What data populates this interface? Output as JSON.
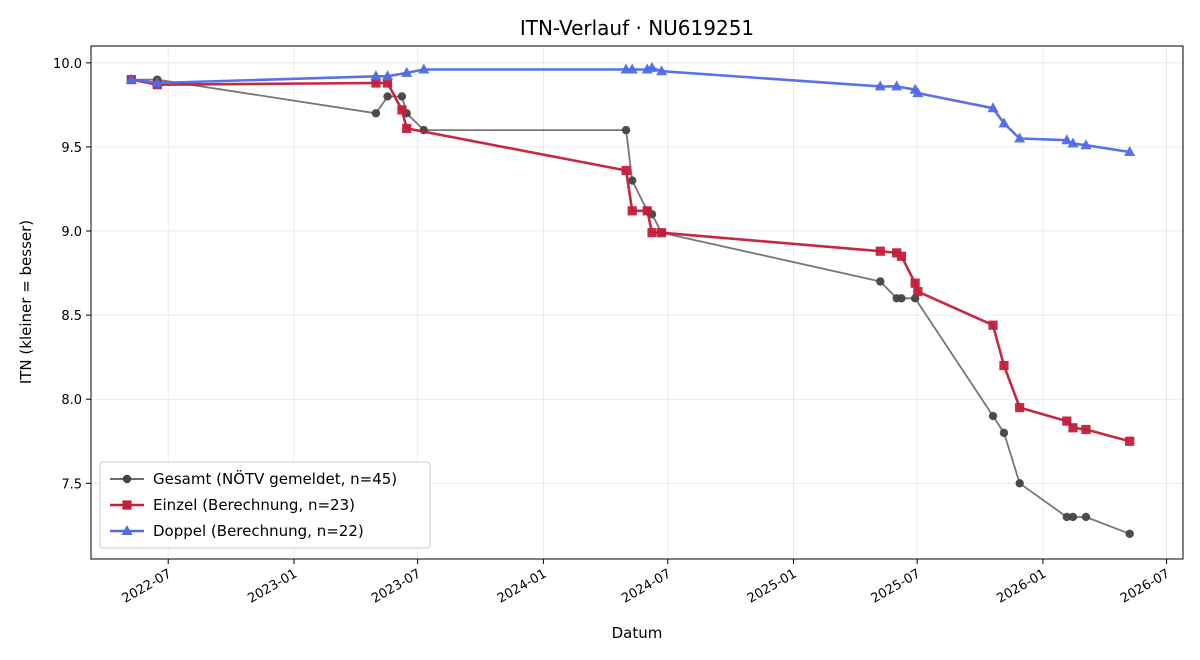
{
  "chart_data": {
    "type": "line",
    "title": "ITN-Verlauf · NU619251",
    "xlabel": "Datum",
    "ylabel": "ITN  (kleiner = besser)",
    "xlim": [
      "2022-03-10",
      "2026-07-25"
    ],
    "ylim": [
      7.05,
      10.1
    ],
    "x_ticks": [
      "2022-07",
      "2023-01",
      "2023-07",
      "2024-01",
      "2024-07",
      "2025-01",
      "2025-07",
      "2026-01",
      "2026-07"
    ],
    "y_ticks": [
      "7.5",
      "8.0",
      "8.5",
      "9.0",
      "9.5",
      "10.0"
    ],
    "grid": true,
    "legend_position": "lower-left",
    "series": [
      {
        "name": "Gesamt (NÖTV gemeldet, n=45)",
        "color": "#555555",
        "marker": "circle",
        "points": [
          {
            "x": "2022-05-08",
            "y": 9.9
          },
          {
            "x": "2022-06-15",
            "y": 9.9
          },
          {
            "x": "2023-05-01",
            "y": 9.7
          },
          {
            "x": "2023-05-18",
            "y": 9.8
          },
          {
            "x": "2023-06-08",
            "y": 9.8
          },
          {
            "x": "2023-06-15",
            "y": 9.7
          },
          {
            "x": "2023-07-10",
            "y": 9.6
          },
          {
            "x": "2024-05-01",
            "y": 9.6
          },
          {
            "x": "2024-05-10",
            "y": 9.3
          },
          {
            "x": "2024-06-01",
            "y": 9.12
          },
          {
            "x": "2024-06-08",
            "y": 9.1
          },
          {
            "x": "2024-06-22",
            "y": 8.99
          },
          {
            "x": "2025-05-08",
            "y": 8.7
          },
          {
            "x": "2025-06-01",
            "y": 8.6
          },
          {
            "x": "2025-06-08",
            "y": 8.6
          },
          {
            "x": "2025-06-28",
            "y": 8.6
          },
          {
            "x": "2025-10-20",
            "y": 7.9
          },
          {
            "x": "2025-11-05",
            "y": 7.8
          },
          {
            "x": "2025-11-28",
            "y": 7.5
          },
          {
            "x": "2026-02-05",
            "y": 7.3
          },
          {
            "x": "2026-02-14",
            "y": 7.3
          },
          {
            "x": "2026-03-05",
            "y": 7.3
          },
          {
            "x": "2026-05-08",
            "y": 7.2
          }
        ]
      },
      {
        "name": "Einzel (Berechnung, n=23)",
        "color": "#c41e3a",
        "marker": "square",
        "points": [
          {
            "x": "2022-05-08",
            "y": 9.9
          },
          {
            "x": "2022-06-15",
            "y": 9.87
          },
          {
            "x": "2023-05-01",
            "y": 9.88
          },
          {
            "x": "2023-05-18",
            "y": 9.88
          },
          {
            "x": "2023-06-08",
            "y": 9.72
          },
          {
            "x": "2023-06-15",
            "y": 9.61
          },
          {
            "x": "2024-05-01",
            "y": 9.36
          },
          {
            "x": "2024-05-10",
            "y": 9.12
          },
          {
            "x": "2024-06-01",
            "y": 9.12
          },
          {
            "x": "2024-06-08",
            "y": 8.99
          },
          {
            "x": "2024-06-22",
            "y": 8.99
          },
          {
            "x": "2025-05-08",
            "y": 8.88
          },
          {
            "x": "2025-06-01",
            "y": 8.87
          },
          {
            "x": "2025-06-08",
            "y": 8.85
          },
          {
            "x": "2025-06-28",
            "y": 8.69
          },
          {
            "x": "2025-07-02",
            "y": 8.64
          },
          {
            "x": "2025-10-20",
            "y": 8.44
          },
          {
            "x": "2025-11-05",
            "y": 8.2
          },
          {
            "x": "2025-11-28",
            "y": 7.95
          },
          {
            "x": "2026-02-05",
            "y": 7.87
          },
          {
            "x": "2026-02-14",
            "y": 7.83
          },
          {
            "x": "2026-03-05",
            "y": 7.82
          },
          {
            "x": "2026-05-08",
            "y": 7.75
          }
        ]
      },
      {
        "name": "Doppel (Berechnung, n=22)",
        "color": "#4f6ce8",
        "marker": "triangle",
        "points": [
          {
            "x": "2022-05-08",
            "y": 9.9
          },
          {
            "x": "2022-06-15",
            "y": 9.88
          },
          {
            "x": "2023-05-01",
            "y": 9.92
          },
          {
            "x": "2023-05-18",
            "y": 9.92
          },
          {
            "x": "2023-06-15",
            "y": 9.94
          },
          {
            "x": "2023-07-10",
            "y": 9.96
          },
          {
            "x": "2024-05-01",
            "y": 9.96
          },
          {
            "x": "2024-05-10",
            "y": 9.96
          },
          {
            "x": "2024-06-01",
            "y": 9.96
          },
          {
            "x": "2024-06-08",
            "y": 9.97
          },
          {
            "x": "2024-06-22",
            "y": 9.95
          },
          {
            "x": "2025-05-08",
            "y": 9.86
          },
          {
            "x": "2025-06-01",
            "y": 9.86
          },
          {
            "x": "2025-06-28",
            "y": 9.84
          },
          {
            "x": "2025-07-02",
            "y": 9.82
          },
          {
            "x": "2025-10-20",
            "y": 9.73
          },
          {
            "x": "2025-11-05",
            "y": 9.64
          },
          {
            "x": "2025-11-28",
            "y": 9.55
          },
          {
            "x": "2026-02-05",
            "y": 9.54
          },
          {
            "x": "2026-02-14",
            "y": 9.52
          },
          {
            "x": "2026-03-05",
            "y": 9.51
          },
          {
            "x": "2026-05-08",
            "y": 9.47
          }
        ]
      }
    ]
  }
}
